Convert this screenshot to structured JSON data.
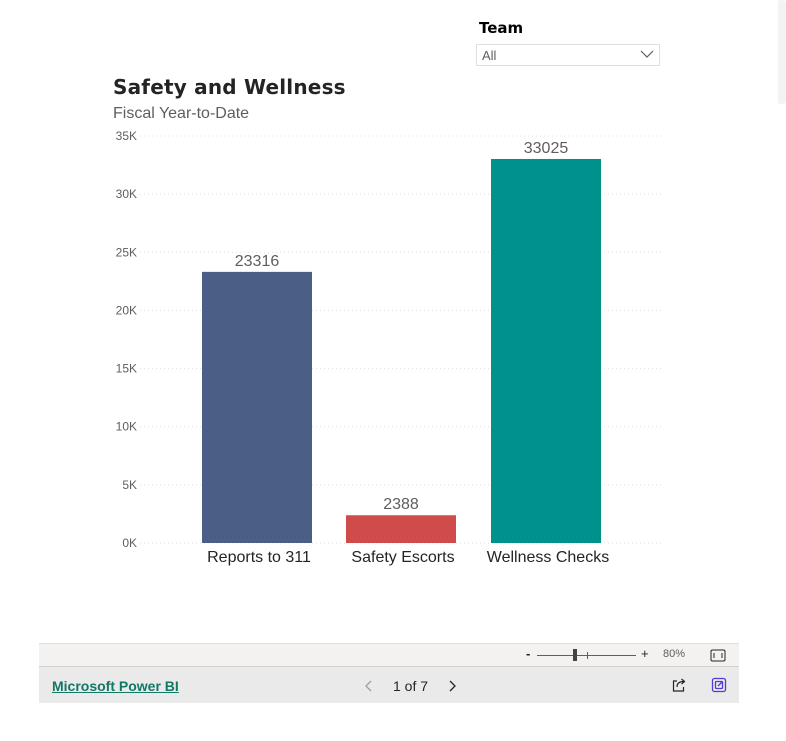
{
  "slicer": {
    "title": "Team",
    "selected": "All",
    "chevron_icon": "chevron-down-icon"
  },
  "chart_data": {
    "type": "bar",
    "title": "Safety and Wellness",
    "subtitle": "Fiscal Year-to-Date",
    "categories": [
      "Reports to 311",
      "Safety Escorts",
      "Wellness Checks"
    ],
    "values": [
      23316,
      2388,
      33025
    ],
    "colors": [
      "#4b5e85",
      "#d04c4b",
      "#00918c"
    ],
    "data_labels": [
      "23316",
      "2388",
      "33025"
    ],
    "y_ticks": [
      0,
      5000,
      10000,
      15000,
      20000,
      25000,
      30000,
      35000
    ],
    "y_tick_labels": [
      "0K",
      "5K",
      "10K",
      "15K",
      "20K",
      "25K",
      "30K",
      "35K"
    ],
    "ylim": [
      0,
      35000
    ],
    "xlabel": "",
    "ylabel": "",
    "grid": true
  },
  "footer": {
    "zoom_minus": "-",
    "zoom_plus": "+",
    "zoom_level": "80%",
    "brand_link": "Microsoft Power BI",
    "page_indicator": "1 of 7",
    "icons": {
      "fit": "fit-to-page-icon",
      "prev": "chevron-left-icon",
      "next": "chevron-right-icon",
      "share": "share-icon",
      "expand": "open-in-powerbi-icon"
    },
    "accent_color": "#117865"
  }
}
